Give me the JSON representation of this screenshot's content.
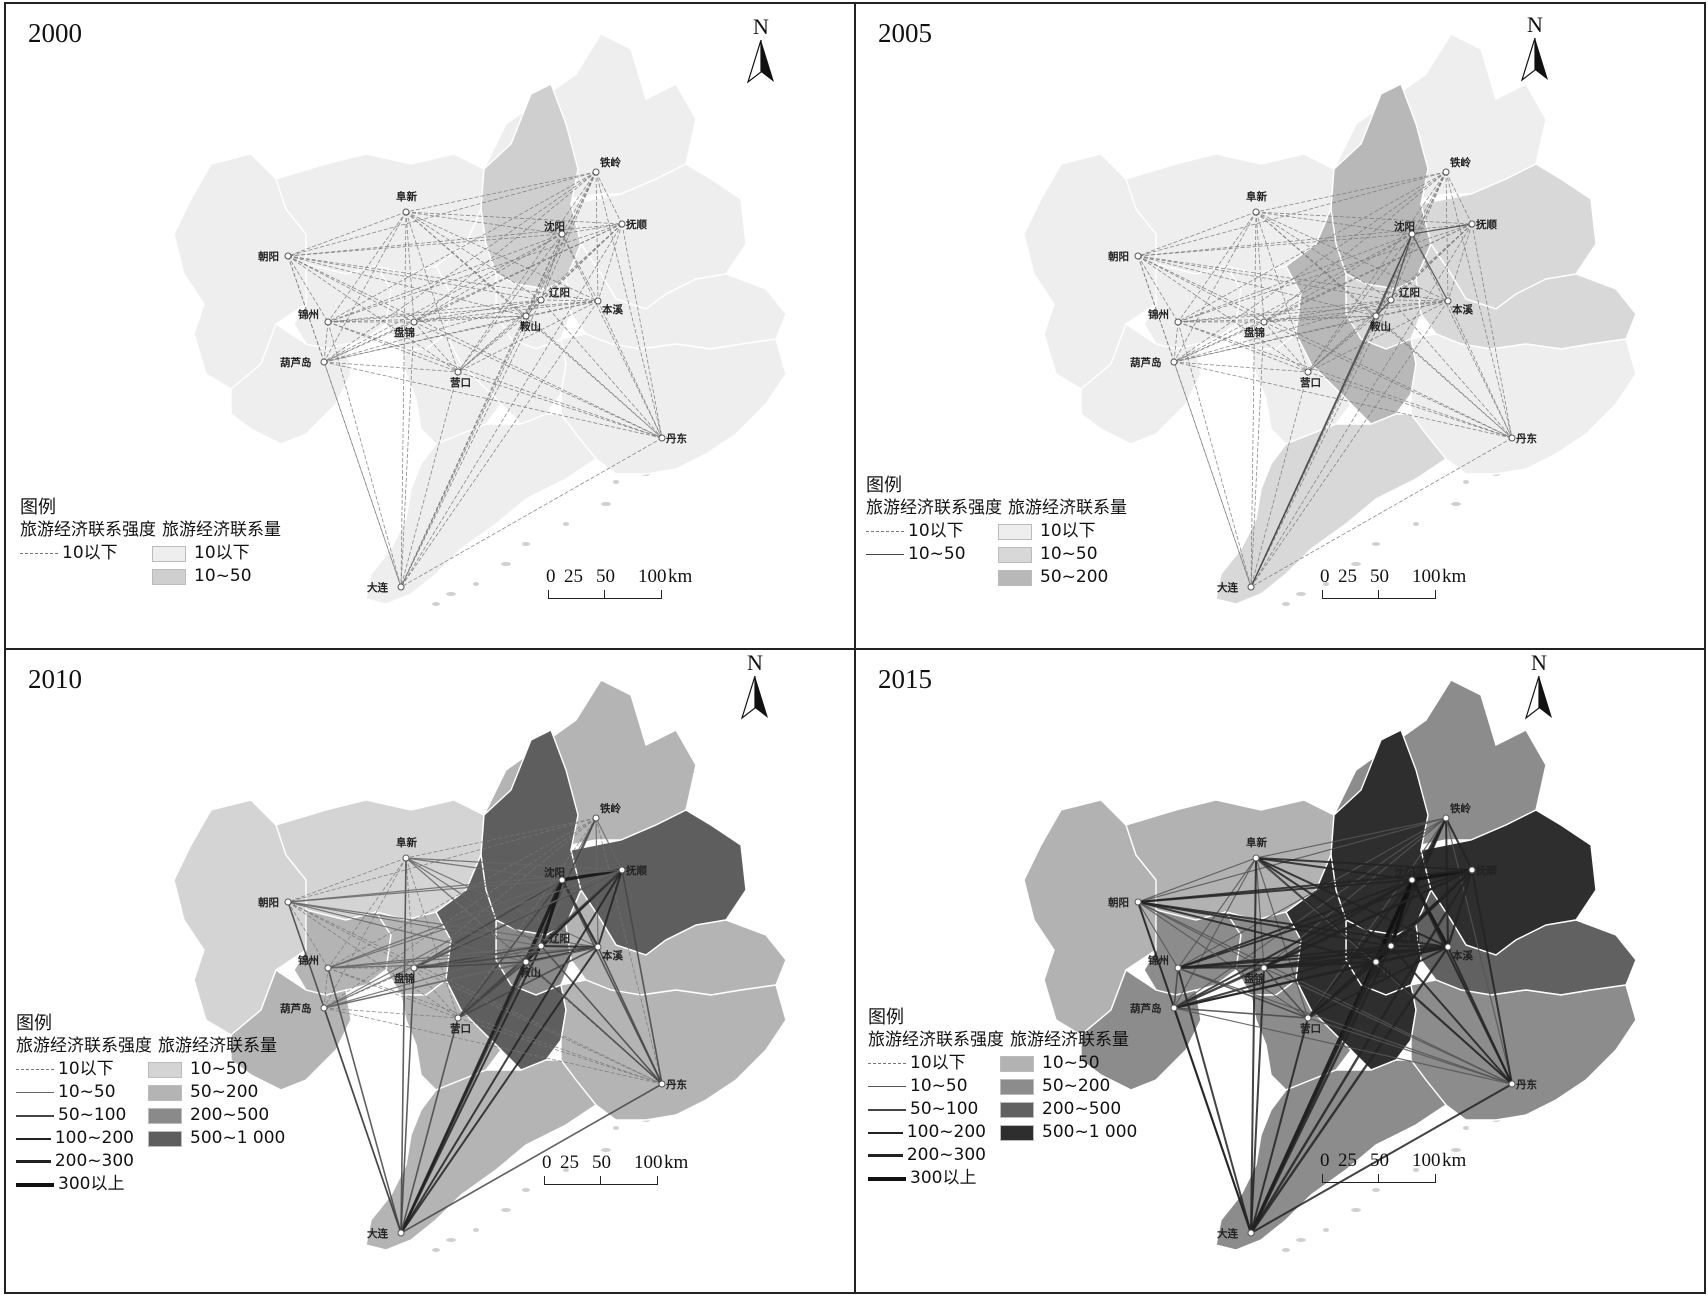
{
  "colors": {
    "border": "#222222",
    "region_border": "#ffffff",
    "coast": "#9a9a9a"
  },
  "common": {
    "north_label": "N",
    "legend_title": "图例",
    "strength_header": "旅游经济联系强度",
    "volume_header": "旅游经济联系量",
    "scale_labels": [
      "0",
      "25",
      "50",
      "100",
      "km"
    ]
  },
  "panels": [
    {
      "year": "2000",
      "strength_legend": [
        {
          "label": "10以下",
          "style": "dash",
          "width": 1,
          "color": "#777777"
        }
      ],
      "volume_legend": [
        {
          "label": "10以下",
          "color": "#eeeeee"
        },
        {
          "label": "10~50",
          "color": "#cfcfcf"
        }
      ],
      "region_fills": {
        "chaoyang": "#eeeeee",
        "fuxin": "#eeeeee",
        "tieling": "#eeeeee",
        "shenyang": "#cfcfcf",
        "fushun": "#eeeeee",
        "benxi": "#eeeeee",
        "jinzhou": "#eeeeee",
        "huludao": "#eeeeee",
        "panjin": "#eeeeee",
        "anshan": "#eeeeee",
        "liaoyang": "#eeeeee",
        "yingkou": "#eeeeee",
        "dandong": "#eeeeee",
        "dalian": "#eeeeee"
      }
    },
    {
      "year": "2005",
      "strength_legend": [
        {
          "label": "10以下",
          "style": "dash",
          "width": 1,
          "color": "#777777"
        },
        {
          "label": "10~50",
          "style": "solid",
          "width": 1.5,
          "color": "#444444"
        }
      ],
      "volume_legend": [
        {
          "label": "10以下",
          "color": "#eeeeee"
        },
        {
          "label": "10~50",
          "color": "#d8d8d8"
        },
        {
          "label": "50~200",
          "color": "#b8b8b8"
        }
      ],
      "region_fills": {
        "chaoyang": "#eeeeee",
        "fuxin": "#eeeeee",
        "tieling": "#eeeeee",
        "shenyang": "#b8b8b8",
        "fushun": "#d8d8d8",
        "benxi": "#d8d8d8",
        "jinzhou": "#eeeeee",
        "huludao": "#eeeeee",
        "panjin": "#eeeeee",
        "anshan": "#b8b8b8",
        "liaoyang": "#d8d8d8",
        "yingkou": "#eeeeee",
        "dandong": "#eeeeee",
        "dalian": "#d8d8d8"
      }
    },
    {
      "year": "2010",
      "strength_legend": [
        {
          "label": "10以下",
          "style": "dash",
          "width": 1,
          "color": "#777777"
        },
        {
          "label": "10~50",
          "style": "solid",
          "width": 1.5,
          "color": "#666666"
        },
        {
          "label": "50~100",
          "style": "solid",
          "width": 2,
          "color": "#444444"
        },
        {
          "label": "100~200",
          "style": "solid",
          "width": 2.5,
          "color": "#222222"
        },
        {
          "label": "200~300",
          "style": "solid",
          "width": 3,
          "color": "#222222"
        },
        {
          "label": "300以上",
          "style": "solid",
          "width": 4,
          "color": "#111111"
        }
      ],
      "volume_legend": [
        {
          "label": "10~50",
          "color": "#d4d4d4"
        },
        {
          "label": "50~200",
          "color": "#b4b4b4"
        },
        {
          "label": "200~500",
          "color": "#8a8a8a"
        },
        {
          "label": "500~1 000",
          "color": "#5e5e5e"
        }
      ],
      "region_fills": {
        "chaoyang": "#d4d4d4",
        "fuxin": "#d4d4d4",
        "tieling": "#b4b4b4",
        "shenyang": "#5e5e5e",
        "fushun": "#5e5e5e",
        "benxi": "#b4b4b4",
        "jinzhou": "#b4b4b4",
        "huludao": "#b4b4b4",
        "panjin": "#b4b4b4",
        "anshan": "#5e5e5e",
        "liaoyang": "#8a8a8a",
        "yingkou": "#b4b4b4",
        "dandong": "#b4b4b4",
        "dalian": "#b4b4b4"
      }
    },
    {
      "year": "2015",
      "strength_legend": [
        {
          "label": "10以下",
          "style": "dash",
          "width": 1,
          "color": "#777777"
        },
        {
          "label": "10~50",
          "style": "solid",
          "width": 1.5,
          "color": "#555555"
        },
        {
          "label": "50~100",
          "style": "solid",
          "width": 2,
          "color": "#444444"
        },
        {
          "label": "100~200",
          "style": "solid",
          "width": 2.5,
          "color": "#222222"
        },
        {
          "label": "200~300",
          "style": "solid",
          "width": 3,
          "color": "#222222"
        },
        {
          "label": "300以上",
          "style": "solid",
          "width": 4,
          "color": "#111111"
        }
      ],
      "volume_legend": [
        {
          "label": "10~50",
          "color": "#b2b2b2"
        },
        {
          "label": "50~200",
          "color": "#8c8c8c"
        },
        {
          "label": "200~500",
          "color": "#616161"
        },
        {
          "label": "500~1 000",
          "color": "#2e2e2e"
        }
      ],
      "region_fills": {
        "chaoyang": "#b2b2b2",
        "fuxin": "#b2b2b2",
        "tieling": "#8c8c8c",
        "shenyang": "#2e2e2e",
        "fushun": "#2e2e2e",
        "benxi": "#616161",
        "jinzhou": "#8c8c8c",
        "huludao": "#8c8c8c",
        "panjin": "#8c8c8c",
        "anshan": "#2e2e2e",
        "liaoyang": "#2e2e2e",
        "yingkou": "#8c8c8c",
        "dandong": "#8c8c8c",
        "dalian": "#8c8c8c"
      }
    }
  ],
  "cities": [
    {
      "key": "tieling",
      "label": "铁岭"
    },
    {
      "key": "fuxin",
      "label": "阜新"
    },
    {
      "key": "shenyang",
      "label": "沈阳"
    },
    {
      "key": "fushun",
      "label": "抚顺"
    },
    {
      "key": "chaoyang",
      "label": "朝阳"
    },
    {
      "key": "liaoyang",
      "label": "辽阳"
    },
    {
      "key": "benxi",
      "label": "本溪"
    },
    {
      "key": "jinzhou",
      "label": "锦州"
    },
    {
      "key": "panjin",
      "label": "盘锦"
    },
    {
      "key": "anshan",
      "label": "鞍山"
    },
    {
      "key": "huludao",
      "label": "葫芦岛"
    },
    {
      "key": "yingkou",
      "label": "营口"
    },
    {
      "key": "dandong",
      "label": "丹东"
    },
    {
      "key": "dalian",
      "label": "大连"
    }
  ]
}
